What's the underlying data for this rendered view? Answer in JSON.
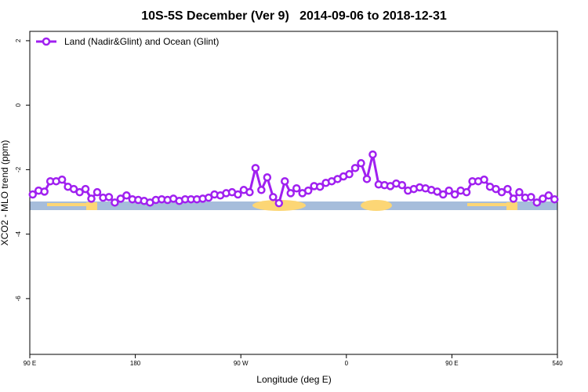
{
  "chart_data": {
    "type": "line",
    "title": "10S-5S December (Ver 9)   2014-09-06 to 2018-12-31",
    "x_label": "Longitude (deg E)",
    "y_label": "XCO2 - MLO trend (ppm)",
    "xlim": [
      90,
      540
    ],
    "ylim": [
      -7.73,
      2.29
    ],
    "xticks": [
      {
        "value": 90,
        "label": "90 E"
      },
      180,
      {
        "value": 270,
        "label": "90 W"
      },
      {
        "value": 360,
        "label": "0"
      },
      {
        "value": 450,
        "label": "90 E"
      },
      540
    ],
    "yticks": [
      2,
      0,
      -2,
      -4,
      -6
    ],
    "legend_position": "top-left",
    "x": [
      92.5,
      97.5,
      102.5,
      107.5,
      112.5,
      117.5,
      122.5,
      127.5,
      132.5,
      137.5,
      142.5,
      147.5,
      152.5,
      157.5,
      162.5,
      167.5,
      172.5,
      177.5,
      182.5,
      187.5,
      192.5,
      197.5,
      202.5,
      207.5,
      212.5,
      217.5,
      222.5,
      227.5,
      232.5,
      237.5,
      242.5,
      247.5,
      252.5,
      257.5,
      262.5,
      267.5,
      272.5,
      277.5,
      282.5,
      287.5,
      292.5,
      297.5,
      302.5,
      307.5,
      312.5,
      317.5,
      322.5,
      327.5,
      332.5,
      337.5,
      342.5,
      347.5,
      352.5,
      357.5,
      362.5,
      367.5,
      372.5,
      377.5,
      382.5,
      387.5,
      392.5,
      397.5,
      402.5,
      407.5,
      412.5,
      417.5,
      422.5,
      427.5,
      432.5,
      437.5,
      442.5,
      447.5,
      452.5,
      457.5,
      462.5,
      467.5,
      472.5,
      477.5,
      482.5,
      487.5,
      492.5,
      497.5,
      502.5,
      507.5,
      512.5,
      517.5,
      522.5,
      527.5,
      532.5,
      537.5
    ],
    "series": [
      {
        "name": "Land (Nadir&Glint) and Ocean (Glint)",
        "color": "#a020f0",
        "values": [
          -2.77,
          -2.65,
          -2.68,
          -2.36,
          -2.36,
          -2.31,
          -2.53,
          -2.6,
          -2.7,
          -2.6,
          -2.9,
          -2.7,
          -2.87,
          -2.85,
          -3.02,
          -2.9,
          -2.8,
          -2.92,
          -2.94,
          -2.97,
          -3.02,
          -2.94,
          -2.92,
          -2.94,
          -2.9,
          -2.97,
          -2.92,
          -2.92,
          -2.92,
          -2.9,
          -2.87,
          -2.77,
          -2.8,
          -2.73,
          -2.7,
          -2.77,
          -2.63,
          -2.7,
          -1.95,
          -2.63,
          -2.24,
          -2.85,
          -3.04,
          -2.36,
          -2.73,
          -2.58,
          -2.73,
          -2.65,
          -2.51,
          -2.53,
          -2.41,
          -2.36,
          -2.29,
          -2.21,
          -2.14,
          -1.95,
          -1.8,
          -2.29,
          -1.53,
          -2.46,
          -2.48,
          -2.51,
          -2.43,
          -2.48,
          -2.65,
          -2.6,
          -2.55,
          -2.58,
          -2.63,
          -2.68,
          -2.77,
          -2.65,
          -2.77,
          -2.65,
          -2.7,
          -2.36,
          -2.36,
          -2.31,
          -2.53,
          -2.6,
          -2.7,
          -2.6,
          -2.9,
          -2.7,
          -2.87,
          -2.85,
          -3.02,
          -2.9,
          -2.8,
          -2.92
        ]
      }
    ]
  }
}
